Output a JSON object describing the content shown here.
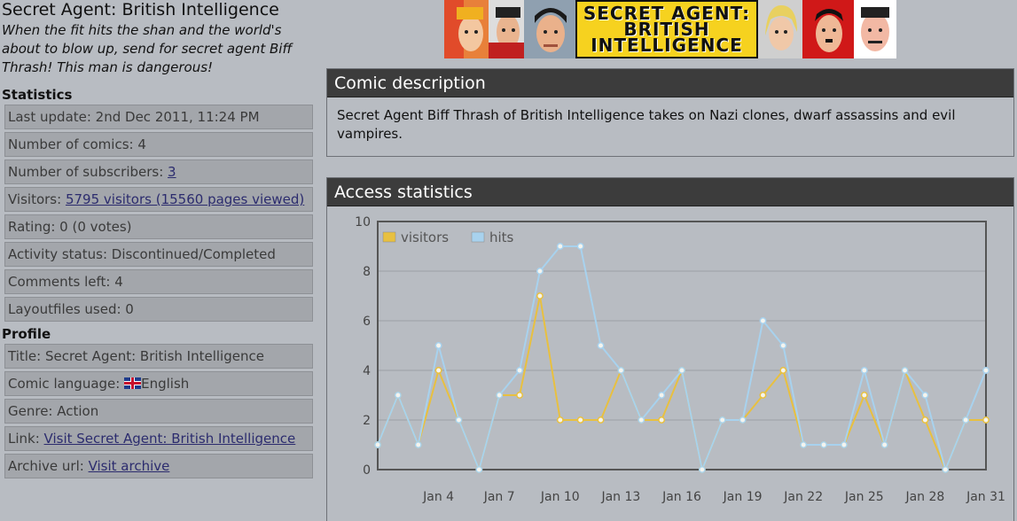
{
  "site": {
    "title": "Secret Agent: British Intelligence",
    "tagline": "When the fit hits the shan and the world's about to blow up, send for secret agent Biff Thrash! This man is dangerous!"
  },
  "banner": {
    "logo_line1": "SECRET AGENT:",
    "logo_line2": "BRITISH",
    "logo_line3": "INTELLIGENCE"
  },
  "statistics": {
    "heading": "Statistics",
    "last_update": "Last update: 2nd Dec 2011, 11:24 PM",
    "num_comics": "Number of comics: 4",
    "subscribers_label": "Number of subscribers: ",
    "subscribers_link": "3",
    "visitors_label": "Visitors: ",
    "visitors_link": "5795 visitors (15560 pages viewed)",
    "rating": "Rating: 0 (0 votes)",
    "activity": "Activity status: Discontinued/Completed",
    "comments": "Comments left: 4",
    "layoutfiles": "Layoutfiles used: 0"
  },
  "profile": {
    "heading": "Profile",
    "title": "Title: Secret Agent: British Intelligence",
    "language_label": "Comic language: ",
    "language_value": "English",
    "genre": "Genre: Action",
    "link_label": "Link: ",
    "link_text": "Visit Secret Agent: British Intelligence",
    "archive_label": "Archive url: ",
    "archive_link": "Visit archive"
  },
  "description": {
    "heading": "Comic description",
    "text": "Secret Agent Biff Thrash of British Intelligence takes on Nazi clones, dwarf assassins and evil vampires."
  },
  "access": {
    "heading": "Access statistics"
  },
  "colors": {
    "visitors": "#e8c040",
    "hits": "#a8d2ee",
    "panel_head": "#3c3c3c"
  },
  "chart_data": {
    "type": "line",
    "x": [
      1,
      2,
      3,
      4,
      5,
      6,
      7,
      8,
      9,
      10,
      11,
      12,
      13,
      14,
      15,
      16,
      17,
      18,
      19,
      20,
      21,
      22,
      23,
      24,
      25,
      26,
      27,
      28,
      29,
      30,
      31
    ],
    "xticks": [
      4,
      7,
      10,
      13,
      16,
      19,
      22,
      25,
      28,
      31
    ],
    "xtick_labels": [
      "Jan 4",
      "Jan 7",
      "Jan 10",
      "Jan 13",
      "Jan 16",
      "Jan 19",
      "Jan 22",
      "Jan 25",
      "Jan 28",
      "Jan 31"
    ],
    "ylim": [
      0,
      10
    ],
    "yticks": [
      0,
      2,
      4,
      6,
      8,
      10
    ],
    "grid": true,
    "legend": "top-left",
    "series": [
      {
        "name": "visitors",
        "values": [
          1,
          3,
          1,
          4,
          2,
          0,
          3,
          3,
          7,
          2,
          2,
          2,
          4,
          2,
          2,
          4,
          0,
          2,
          2,
          3,
          4,
          1,
          1,
          1,
          3,
          1,
          4,
          2,
          0,
          2,
          2
        ]
      },
      {
        "name": "hits",
        "values": [
          1,
          3,
          1,
          5,
          2,
          0,
          3,
          4,
          8,
          9,
          9,
          5,
          4,
          2,
          3,
          4,
          0,
          2,
          2,
          6,
          5,
          1,
          1,
          1,
          4,
          1,
          4,
          3,
          0,
          2,
          4
        ]
      }
    ]
  }
}
